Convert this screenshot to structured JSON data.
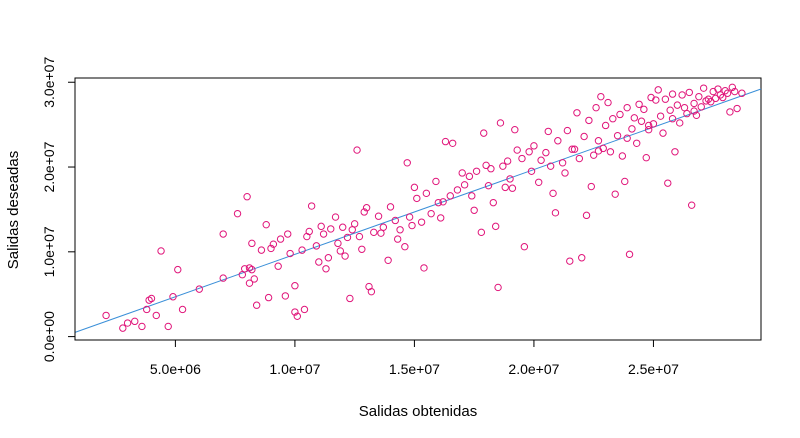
{
  "chart_data": {
    "type": "scatter",
    "title": "",
    "xlabel": "Salidas obtenidas",
    "ylabel": "Salidas deseadas",
    "xlim": [
      800000,
      29500000
    ],
    "ylim": [
      -400000,
      30500000
    ],
    "x_ticks": [
      5000000,
      10000000,
      15000000,
      20000000,
      25000000
    ],
    "x_tick_labels": [
      "5.0e+06",
      "1.0e+07",
      "1.5e+07",
      "2.0e+07",
      "2.5e+07"
    ],
    "y_ticks": [
      0,
      10000000,
      20000000,
      30000000
    ],
    "y_tick_labels": [
      "0.0e+00",
      "1.0e+07",
      "2.0e+07",
      "3.0e+07"
    ],
    "grid": false,
    "legend": null,
    "point_color": "#e0157a",
    "line_color": "#3a8fd8",
    "fit_line": {
      "intercept": -300000,
      "slope": 1.0
    },
    "series": [
      {
        "points": [
          [
            2100000,
            2500000
          ],
          [
            2800000,
            1000000
          ],
          [
            3000000,
            1600000
          ],
          [
            3300000,
            1800000
          ],
          [
            3600000,
            1200000
          ],
          [
            3800000,
            3200000
          ],
          [
            3900000,
            4300000
          ],
          [
            4000000,
            4500000
          ],
          [
            4200000,
            2500000
          ],
          [
            4400000,
            10100000
          ],
          [
            4700000,
            1200000
          ],
          [
            4900000,
            4700000
          ],
          [
            5300000,
            3200000
          ],
          [
            5100000,
            7900000
          ],
          [
            6000000,
            5600000
          ],
          [
            7000000,
            6900000
          ],
          [
            7000000,
            12100000
          ],
          [
            7600000,
            14500000
          ],
          [
            7800000,
            7300000
          ],
          [
            7900000,
            8000000
          ],
          [
            8000000,
            16500000
          ],
          [
            8100000,
            8100000
          ],
          [
            8100000,
            6300000
          ],
          [
            8200000,
            7900000
          ],
          [
            8200000,
            11000000
          ],
          [
            8400000,
            3700000
          ],
          [
            8600000,
            10200000
          ],
          [
            8800000,
            13200000
          ],
          [
            8900000,
            4600000
          ],
          [
            9000000,
            10400000
          ],
          [
            9300000,
            8300000
          ],
          [
            9400000,
            11500000
          ],
          [
            9600000,
            4800000
          ],
          [
            9700000,
            12100000
          ],
          [
            9800000,
            9800000
          ],
          [
            10000000,
            6000000
          ],
          [
            10000000,
            2900000
          ],
          [
            10100000,
            2400000
          ],
          [
            10300000,
            10200000
          ],
          [
            10400000,
            3200000
          ],
          [
            10600000,
            12400000
          ],
          [
            10700000,
            15400000
          ],
          [
            10900000,
            10700000
          ],
          [
            11000000,
            8800000
          ],
          [
            11100000,
            13000000
          ],
          [
            11300000,
            8000000
          ],
          [
            11400000,
            9300000
          ],
          [
            11500000,
            12700000
          ],
          [
            11700000,
            14100000
          ],
          [
            11800000,
            11000000
          ],
          [
            11900000,
            10100000
          ],
          [
            12000000,
            12900000
          ],
          [
            12100000,
            9500000
          ],
          [
            12200000,
            11700000
          ],
          [
            12300000,
            4500000
          ],
          [
            12400000,
            12600000
          ],
          [
            12500000,
            13300000
          ],
          [
            12600000,
            22000000
          ],
          [
            12700000,
            11800000
          ],
          [
            12900000,
            14700000
          ],
          [
            13000000,
            15200000
          ],
          [
            13100000,
            5900000
          ],
          [
            13200000,
            5300000
          ],
          [
            13300000,
            12300000
          ],
          [
            13500000,
            14200000
          ],
          [
            13700000,
            12900000
          ],
          [
            13900000,
            9000000
          ],
          [
            14000000,
            15300000
          ],
          [
            14200000,
            13700000
          ],
          [
            14300000,
            11500000
          ],
          [
            14400000,
            12600000
          ],
          [
            14600000,
            10600000
          ],
          [
            14700000,
            20500000
          ],
          [
            14800000,
            14100000
          ],
          [
            15000000,
            17600000
          ],
          [
            15100000,
            16300000
          ],
          [
            15300000,
            13500000
          ],
          [
            15400000,
            8100000
          ],
          [
            15500000,
            16900000
          ],
          [
            15700000,
            14500000
          ],
          [
            15900000,
            18300000
          ],
          [
            16000000,
            15800000
          ],
          [
            16100000,
            14000000
          ],
          [
            16300000,
            23000000
          ],
          [
            16500000,
            16600000
          ],
          [
            16600000,
            22800000
          ],
          [
            16800000,
            17300000
          ],
          [
            17000000,
            19300000
          ],
          [
            17100000,
            17900000
          ],
          [
            17300000,
            18900000
          ],
          [
            17500000,
            14900000
          ],
          [
            17600000,
            19500000
          ],
          [
            17800000,
            12300000
          ],
          [
            17900000,
            24000000
          ],
          [
            18000000,
            20200000
          ],
          [
            18200000,
            19800000
          ],
          [
            18300000,
            15800000
          ],
          [
            18400000,
            13000000
          ],
          [
            18500000,
            5800000
          ],
          [
            18600000,
            25200000
          ],
          [
            18700000,
            20100000
          ],
          [
            18800000,
            17600000
          ],
          [
            18900000,
            20700000
          ],
          [
            19100000,
            17500000
          ],
          [
            19200000,
            24400000
          ],
          [
            19300000,
            22000000
          ],
          [
            19500000,
            21000000
          ],
          [
            19600000,
            10600000
          ],
          [
            19800000,
            21800000
          ],
          [
            19900000,
            19500000
          ],
          [
            20000000,
            22500000
          ],
          [
            20200000,
            18200000
          ],
          [
            20300000,
            20800000
          ],
          [
            20500000,
            21700000
          ],
          [
            20600000,
            24200000
          ],
          [
            20800000,
            16900000
          ],
          [
            20900000,
            14600000
          ],
          [
            21000000,
            23100000
          ],
          [
            21200000,
            20500000
          ],
          [
            21300000,
            19300000
          ],
          [
            21400000,
            24300000
          ],
          [
            21500000,
            8900000
          ],
          [
            21600000,
            22100000
          ],
          [
            21800000,
            26400000
          ],
          [
            21900000,
            21000000
          ],
          [
            22000000,
            9300000
          ],
          [
            22100000,
            23600000
          ],
          [
            22200000,
            14300000
          ],
          [
            22300000,
            25500000
          ],
          [
            22400000,
            17700000
          ],
          [
            22500000,
            21400000
          ],
          [
            22600000,
            27000000
          ],
          [
            22700000,
            23100000
          ],
          [
            22800000,
            28300000
          ],
          [
            22900000,
            22200000
          ],
          [
            23000000,
            24900000
          ],
          [
            23100000,
            27600000
          ],
          [
            23200000,
            21800000
          ],
          [
            23300000,
            25700000
          ],
          [
            23400000,
            16800000
          ],
          [
            23500000,
            23700000
          ],
          [
            23600000,
            26200000
          ],
          [
            23700000,
            21300000
          ],
          [
            23800000,
            18300000
          ],
          [
            23900000,
            27000000
          ],
          [
            24000000,
            9700000
          ],
          [
            24100000,
            24500000
          ],
          [
            24200000,
            25800000
          ],
          [
            24300000,
            22800000
          ],
          [
            24400000,
            27400000
          ],
          [
            24500000,
            25400000
          ],
          [
            24600000,
            26800000
          ],
          [
            24700000,
            21100000
          ],
          [
            24800000,
            24900000
          ],
          [
            24900000,
            28200000
          ],
          [
            25000000,
            25100000
          ],
          [
            25100000,
            27900000
          ],
          [
            25200000,
            29100000
          ],
          [
            25300000,
            26000000
          ],
          [
            25400000,
            24000000
          ],
          [
            25500000,
            28000000
          ],
          [
            25600000,
            18100000
          ],
          [
            25700000,
            26700000
          ],
          [
            25800000,
            28600000
          ],
          [
            25900000,
            21800000
          ],
          [
            26000000,
            27300000
          ],
          [
            26100000,
            25200000
          ],
          [
            26200000,
            28500000
          ],
          [
            26300000,
            27000000
          ],
          [
            26400000,
            26300000
          ],
          [
            26500000,
            28800000
          ],
          [
            26600000,
            15500000
          ],
          [
            26700000,
            27500000
          ],
          [
            26800000,
            26100000
          ],
          [
            26900000,
            28300000
          ],
          [
            27000000,
            27100000
          ],
          [
            27100000,
            29300000
          ],
          [
            27200000,
            27800000
          ],
          [
            27300000,
            28000000
          ],
          [
            27400000,
            27700000
          ],
          [
            27500000,
            28900000
          ],
          [
            27600000,
            28100000
          ],
          [
            27700000,
            29200000
          ],
          [
            27800000,
            28500000
          ],
          [
            27900000,
            28200000
          ],
          [
            28000000,
            29000000
          ],
          [
            28100000,
            28700000
          ],
          [
            28200000,
            26500000
          ],
          [
            28300000,
            29400000
          ],
          [
            28400000,
            28900000
          ],
          [
            28500000,
            26900000
          ],
          [
            28700000,
            28700000
          ],
          [
            8300000,
            6800000
          ],
          [
            9100000,
            10900000
          ],
          [
            10500000,
            11800000
          ],
          [
            11200000,
            12100000
          ],
          [
            12800000,
            10300000
          ],
          [
            13600000,
            12200000
          ],
          [
            14900000,
            13100000
          ],
          [
            16200000,
            15900000
          ],
          [
            17400000,
            16600000
          ],
          [
            18100000,
            17800000
          ],
          [
            19000000,
            18600000
          ],
          [
            20700000,
            20100000
          ],
          [
            21700000,
            22100000
          ],
          [
            22700000,
            21900000
          ],
          [
            23900000,
            23400000
          ],
          [
            24800000,
            24400000
          ],
          [
            25800000,
            25700000
          ],
          [
            26700000,
            26600000
          ]
        ]
      }
    ]
  }
}
